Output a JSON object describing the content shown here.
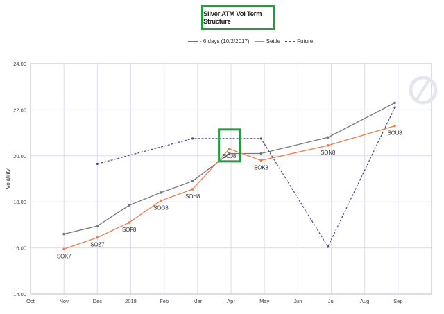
{
  "chart_data": {
    "type": "line",
    "title": "Silver ATM Vol Term Structure",
    "ylabel": "Volatility",
    "xlabel": "",
    "ylim": [
      14.0,
      24.0
    ],
    "yticks": [
      "14.00",
      "16.00",
      "18.00",
      "20.00",
      "22.00",
      "24.00"
    ],
    "xticks": [
      "Oct",
      "Nov",
      "Dec",
      "2018",
      "Feb",
      "Mar",
      "Apr",
      "May",
      "Jun",
      "Jul",
      "Aug",
      "Sep"
    ],
    "grid": true,
    "legend_position": "top-center",
    "series": [
      {
        "name": "- 6 days (10/2/2017)",
        "color": "#777777",
        "style": "line-dot",
        "points": [
          {
            "x": 1.0,
            "y": 16.6
          },
          {
            "x": 2.0,
            "y": 16.95
          },
          {
            "x": 2.95,
            "y": 17.85
          },
          {
            "x": 3.9,
            "y": 18.4
          },
          {
            "x": 4.85,
            "y": 18.9
          },
          {
            "x": 5.95,
            "y": 20.1
          },
          {
            "x": 6.9,
            "y": 20.1
          },
          {
            "x": 8.9,
            "y": 20.8
          },
          {
            "x": 10.9,
            "y": 22.3
          }
        ]
      },
      {
        "name": "Settle",
        "color": "#f07a4a",
        "style": "line-dot",
        "points": [
          {
            "x": 1.0,
            "y": 15.95,
            "label": "SOX7"
          },
          {
            "x": 2.0,
            "y": 16.45,
            "label": "SOZ7"
          },
          {
            "x": 2.95,
            "y": 17.1,
            "label": "SOF8"
          },
          {
            "x": 3.9,
            "y": 18.05,
            "label": "SOG8"
          },
          {
            "x": 4.85,
            "y": 18.55,
            "label": "SOH8"
          },
          {
            "x": 5.95,
            "y": 20.3,
            "label": "SOJ8"
          },
          {
            "x": 6.9,
            "y": 19.8,
            "label": "SOK8"
          },
          {
            "x": 8.9,
            "y": 20.45,
            "label": "SON8"
          },
          {
            "x": 10.9,
            "y": 21.3,
            "label": "SOU8"
          }
        ]
      },
      {
        "name": "Future",
        "color": "#4a4a8c",
        "style": "dashed",
        "points": [
          {
            "x": 2.0,
            "y": 19.65
          },
          {
            "x": 4.85,
            "y": 20.75
          },
          {
            "x": 6.9,
            "y": 20.75
          },
          {
            "x": 8.9,
            "y": 16.05
          },
          {
            "x": 10.9,
            "y": 22.1
          }
        ]
      }
    ]
  }
}
